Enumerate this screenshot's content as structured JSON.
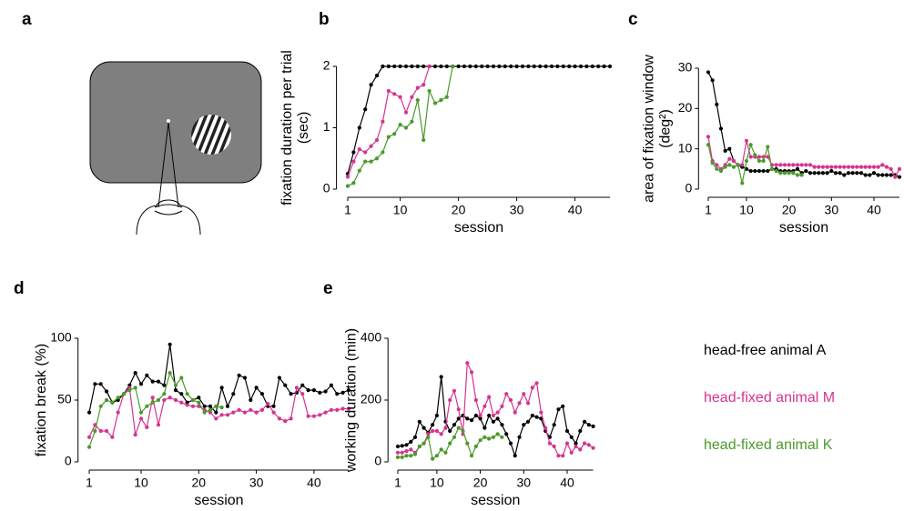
{
  "diagram": {
    "label": "a"
  },
  "legend_note": null,
  "chart_data": [
    {
      "type": "line",
      "label": "b",
      "ylabel": [
        "fixation duration per trial",
        "(sec)"
      ],
      "xlabel": "session",
      "x": [
        1,
        2,
        3,
        4,
        5,
        6,
        7,
        8,
        9,
        10,
        11,
        12,
        13,
        14,
        15,
        16,
        17,
        18,
        19,
        20,
        21,
        22,
        23,
        24,
        25,
        26,
        27,
        28,
        29,
        30,
        31,
        32,
        33,
        34,
        35,
        36,
        37,
        38,
        39,
        40,
        41,
        42,
        43,
        44,
        45,
        46
      ],
      "xlim": [
        0,
        46
      ],
      "xticks": [
        1,
        10,
        20,
        30,
        40
      ],
      "ylim": [
        0,
        2
      ],
      "yticks": [
        0,
        1,
        2
      ],
      "series": [
        {
          "color": "#000000",
          "values": [
            0.25,
            0.6,
            1.0,
            1.3,
            1.7,
            1.85,
            2,
            2,
            2,
            2,
            2,
            2,
            2,
            2,
            2,
            2,
            2,
            2,
            2,
            2,
            2,
            2,
            2,
            2,
            2,
            2,
            2,
            2,
            2,
            2,
            2,
            2,
            2,
            2,
            2,
            2,
            2,
            2,
            2,
            2,
            2,
            2,
            2,
            2,
            2,
            2
          ]
        },
        {
          "color": "#d6338f",
          "values": [
            0.2,
            0.45,
            0.65,
            0.6,
            0.7,
            0.8,
            1.1,
            1.6,
            1.55,
            1.5,
            1.25,
            1.5,
            1.65,
            1.7,
            2.0,
            null,
            null,
            null,
            null,
            null,
            null,
            null,
            null,
            null,
            null,
            null,
            null,
            null,
            null,
            null,
            null,
            null,
            null,
            null,
            null,
            null,
            null,
            null,
            null,
            null,
            null,
            null,
            null,
            null,
            null,
            null
          ]
        },
        {
          "color": "#4a9a2a",
          "values": [
            0.05,
            0.1,
            0.3,
            0.45,
            0.45,
            0.5,
            0.6,
            0.85,
            0.9,
            1.05,
            1.0,
            1.1,
            1.45,
            0.8,
            1.6,
            1.4,
            1.45,
            1.5,
            2.0,
            null,
            null,
            null,
            null,
            null,
            null,
            null,
            null,
            null,
            null,
            null,
            null,
            null,
            null,
            null,
            null,
            null,
            null,
            null,
            null,
            null,
            null,
            null,
            null,
            null,
            null,
            null
          ]
        }
      ]
    },
    {
      "type": "line",
      "label": "c",
      "ylabel": [
        "area of fixation window",
        "(deg²)"
      ],
      "xlabel": "session",
      "x": [
        1,
        2,
        3,
        4,
        5,
        6,
        7,
        8,
        9,
        10,
        11,
        12,
        13,
        14,
        15,
        16,
        17,
        18,
        19,
        20,
        21,
        22,
        23,
        24,
        25,
        26,
        27,
        28,
        29,
        30,
        31,
        32,
        33,
        34,
        35,
        36,
        37,
        38,
        39,
        40,
        41,
        42,
        43,
        44,
        45,
        46
      ],
      "xlim": [
        0,
        46
      ],
      "xticks": [
        1,
        10,
        20,
        30,
        40
      ],
      "ylim": [
        0,
        30
      ],
      "yticks": [
        0,
        10,
        20,
        30
      ],
      "series": [
        {
          "color": "#000000",
          "values": [
            29,
            27,
            21,
            15,
            9.5,
            10,
            7,
            6,
            5.5,
            5,
            4.5,
            4.5,
            4.5,
            4.5,
            4.5,
            5,
            5,
            4.5,
            4.5,
            4.5,
            4.5,
            5,
            4,
            4.5,
            4,
            4,
            4,
            4,
            4,
            4.5,
            4,
            4,
            3.5,
            4,
            4,
            4,
            4,
            3.5,
            3.5,
            4,
            3.5,
            3.5,
            3.5,
            3.5,
            3.5,
            3
          ]
        },
        {
          "color": "#d6338f",
          "values": [
            13,
            7,
            6,
            5,
            6,
            7.5,
            7,
            6,
            6,
            12,
            8,
            8,
            8,
            8,
            8,
            6,
            6,
            6,
            6,
            6,
            6,
            6,
            6,
            6,
            6,
            5.5,
            5.5,
            5.5,
            5.5,
            5.5,
            5.5,
            5.5,
            5.5,
            5.5,
            5.5,
            5.5,
            5.5,
            5.5,
            5.5,
            5.5,
            5.5,
            6,
            5.5,
            5,
            3,
            5
          ]
        },
        {
          "color": "#4a9a2a",
          "values": [
            11,
            6.5,
            5,
            4.5,
            5.5,
            6,
            5.5,
            6,
            1.5,
            7,
            11,
            8.5,
            7,
            7,
            10.5,
            5,
            4.5,
            4,
            4,
            4,
            4,
            3.5,
            3.5,
            null,
            null,
            null,
            null,
            null,
            null,
            null,
            null,
            null,
            null,
            null,
            null,
            null,
            null,
            null,
            null,
            null,
            null,
            null,
            null,
            null,
            null,
            null
          ]
        }
      ]
    },
    {
      "type": "line",
      "label": "d",
      "ylabel": [
        "fixation break (%)"
      ],
      "xlabel": "session",
      "x": [
        1,
        2,
        3,
        4,
        5,
        6,
        7,
        8,
        9,
        10,
        11,
        12,
        13,
        14,
        15,
        16,
        17,
        18,
        19,
        20,
        21,
        22,
        23,
        24,
        25,
        26,
        27,
        28,
        29,
        30,
        31,
        32,
        33,
        34,
        35,
        36,
        37,
        38,
        39,
        40,
        41,
        42,
        43,
        44,
        45,
        46
      ],
      "xlim": [
        0,
        46
      ],
      "xticks": [
        1,
        10,
        20,
        30,
        40
      ],
      "ylim": [
        0,
        100
      ],
      "yticks": [
        0,
        50,
        100
      ],
      "series": [
        {
          "color": "#000000",
          "values": [
            40,
            63,
            63,
            57,
            48,
            50,
            55,
            62,
            72,
            63,
            70,
            65,
            65,
            62,
            95,
            58,
            55,
            48,
            50,
            52,
            45,
            45,
            40,
            60,
            45,
            55,
            70,
            68,
            50,
            60,
            55,
            45,
            45,
            68,
            62,
            55,
            56,
            62,
            58,
            58,
            56,
            57,
            62,
            55,
            56,
            58
          ]
        },
        {
          "color": "#d6338f",
          "values": [
            20,
            30,
            25,
            25,
            20,
            40,
            55,
            60,
            22,
            35,
            28,
            52,
            30,
            50,
            52,
            50,
            48,
            46,
            45,
            45,
            42,
            40,
            35,
            38,
            38,
            40,
            42,
            40,
            42,
            40,
            42,
            47,
            40,
            35,
            33,
            35,
            60,
            55,
            37,
            37,
            38,
            40,
            42,
            42,
            43,
            43
          ]
        },
        {
          "color": "#4a9a2a",
          "values": [
            12,
            25,
            45,
            50,
            48,
            52,
            55,
            58,
            60,
            40,
            45,
            48,
            50,
            55,
            72,
            62,
            68,
            55,
            50,
            48,
            40,
            42,
            45,
            44,
            null,
            null,
            null,
            null,
            null,
            null,
            null,
            null,
            null,
            null,
            null,
            null,
            null,
            null,
            null,
            null,
            null,
            null,
            null,
            null,
            null,
            null
          ]
        }
      ]
    },
    {
      "type": "line",
      "label": "e",
      "ylabel": [
        "working duration (min)"
      ],
      "xlabel": "session",
      "x": [
        1,
        2,
        3,
        4,
        5,
        6,
        7,
        8,
        9,
        10,
        11,
        12,
        13,
        14,
        15,
        16,
        17,
        18,
        19,
        20,
        21,
        22,
        23,
        24,
        25,
        26,
        27,
        28,
        29,
        30,
        31,
        32,
        33,
        34,
        35,
        36,
        37,
        38,
        39,
        40,
        41,
        42,
        43,
        44,
        45,
        46
      ],
      "xlim": [
        0,
        46
      ],
      "xticks": [
        1,
        10,
        20,
        30,
        40
      ],
      "ylim": [
        0,
        400
      ],
      "yticks": [
        0,
        200,
        400
      ],
      "series": [
        {
          "name": "head-free animal A",
          "color": "#000000",
          "values": [
            50,
            52,
            55,
            65,
            80,
            130,
            110,
            95,
            120,
            150,
            275,
            130,
            100,
            120,
            140,
            150,
            140,
            135,
            150,
            140,
            110,
            150,
            130,
            140,
            120,
            90,
            60,
            20,
            80,
            120,
            130,
            150,
            145,
            140,
            100,
            80,
            120,
            170,
            180,
            100,
            80,
            60,
            100,
            130,
            120,
            115
          ]
        },
        {
          "name": "head-fixed animal M",
          "color": "#d6338f",
          "values": [
            30,
            30,
            35,
            40,
            30,
            50,
            60,
            90,
            100,
            100,
            90,
            110,
            200,
            230,
            170,
            90,
            320,
            290,
            200,
            150,
            180,
            210,
            150,
            160,
            180,
            220,
            200,
            160,
            190,
            220,
            190,
            240,
            255,
            160,
            110,
            60,
            50,
            20,
            20,
            60,
            30,
            50,
            40,
            60,
            55,
            45
          ]
        },
        {
          "name": "head-fixed animal K",
          "color": "#4a9a2a",
          "values": [
            15,
            15,
            20,
            20,
            25,
            50,
            60,
            80,
            10,
            20,
            40,
            30,
            60,
            80,
            110,
            100,
            60,
            20,
            50,
            70,
            80,
            75,
            80,
            90,
            80,
            null,
            null,
            null,
            null,
            null,
            null,
            null,
            null,
            null,
            null,
            null,
            null,
            null,
            null,
            null,
            null,
            null,
            null,
            null,
            null,
            null
          ]
        }
      ]
    }
  ]
}
